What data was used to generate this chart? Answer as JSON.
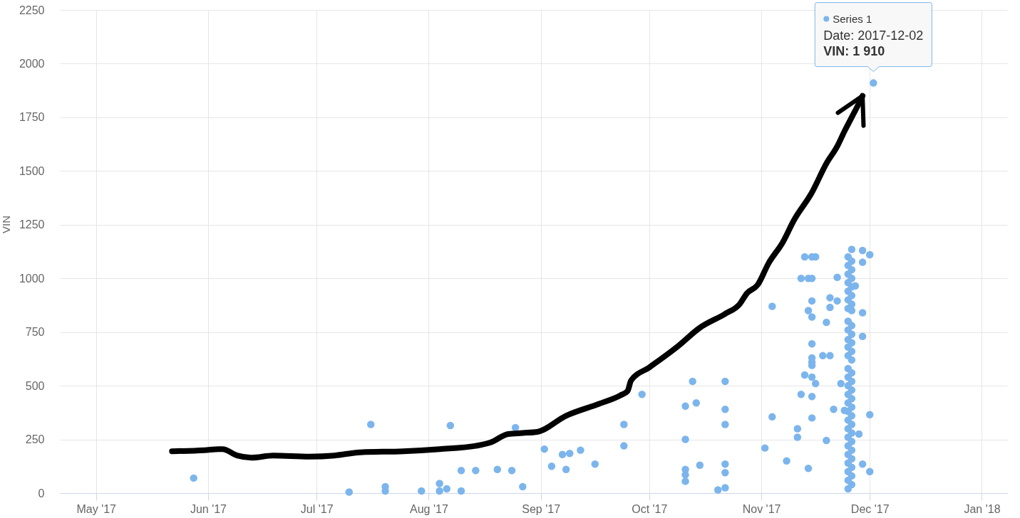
{
  "chart_data": {
    "type": "scatter",
    "ylabel": "VIN",
    "xlim": [
      "2017-04-21",
      "2018-01-08"
    ],
    "xticks": [
      {
        "value": "2017-05-01",
        "label": "May '17"
      },
      {
        "value": "2017-06-01",
        "label": "Jun '17"
      },
      {
        "value": "2017-07-01",
        "label": "Jul '17"
      },
      {
        "value": "2017-08-01",
        "label": "Aug '17"
      },
      {
        "value": "2017-09-01",
        "label": "Sep '17"
      },
      {
        "value": "2017-10-01",
        "label": "Oct '17"
      },
      {
        "value": "2017-11-01",
        "label": "Nov '17"
      },
      {
        "value": "2017-12-01",
        "label": "Dec '17"
      },
      {
        "value": "2018-01-01",
        "label": "Jan '18"
      }
    ],
    "ylim": [
      0,
      2250
    ],
    "yticks": [
      0,
      250,
      500,
      750,
      1000,
      1250,
      1500,
      1750,
      2000,
      2250
    ],
    "grid": true,
    "series": [
      {
        "name": "Series 1",
        "color": "#7cb5ec",
        "x": [
          "2017-05-28",
          "2017-07-10",
          "2017-07-16",
          "2017-07-20",
          "2017-07-20",
          "2017-07-30",
          "2017-08-04",
          "2017-08-04",
          "2017-08-06",
          "2017-08-07",
          "2017-08-10",
          "2017-08-10",
          "2017-08-14",
          "2017-08-20",
          "2017-08-24",
          "2017-08-25",
          "2017-08-27",
          "2017-09-02",
          "2017-09-04",
          "2017-09-07",
          "2017-09-08",
          "2017-09-09",
          "2017-09-12",
          "2017-09-16",
          "2017-09-24",
          "2017-09-24",
          "2017-09-29",
          "2017-10-11",
          "2017-10-11",
          "2017-10-11",
          "2017-10-11",
          "2017-10-11",
          "2017-10-13",
          "2017-10-14",
          "2017-10-15",
          "2017-10-20",
          "2017-10-22",
          "2017-10-22",
          "2017-10-22",
          "2017-10-22",
          "2017-10-22",
          "2017-10-22",
          "2017-11-02",
          "2017-11-04",
          "2017-11-04",
          "2017-11-08",
          "2017-11-11",
          "2017-11-11",
          "2017-11-12",
          "2017-11-12",
          "2017-11-13",
          "2017-11-13",
          "2017-11-14",
          "2017-11-14",
          "2017-11-14",
          "2017-11-15",
          "2017-11-15",
          "2017-11-15",
          "2017-11-15",
          "2017-11-15",
          "2017-11-15",
          "2017-11-15",
          "2017-11-15",
          "2017-11-15",
          "2017-11-15",
          "2017-11-15",
          "2017-11-16",
          "2017-11-16",
          "2017-11-18",
          "2017-11-19",
          "2017-11-19",
          "2017-11-20",
          "2017-11-20",
          "2017-11-20",
          "2017-11-21",
          "2017-11-22",
          "2017-11-22",
          "2017-11-23",
          "2017-11-24",
          "2017-11-25",
          "2017-11-25",
          "2017-11-25",
          "2017-11-25",
          "2017-11-25",
          "2017-11-25",
          "2017-11-25",
          "2017-11-25",
          "2017-11-25",
          "2017-11-25",
          "2017-11-25",
          "2017-11-25",
          "2017-11-25",
          "2017-11-25",
          "2017-11-25",
          "2017-11-25",
          "2017-11-25",
          "2017-11-25",
          "2017-11-25",
          "2017-11-25",
          "2017-11-25",
          "2017-11-25",
          "2017-11-25",
          "2017-11-25",
          "2017-11-25",
          "2017-11-25",
          "2017-11-25",
          "2017-11-26",
          "2017-11-26",
          "2017-11-26",
          "2017-11-26",
          "2017-11-26",
          "2017-11-26",
          "2017-11-26",
          "2017-11-26",
          "2017-11-26",
          "2017-11-26",
          "2017-11-26",
          "2017-11-26",
          "2017-11-26",
          "2017-11-26",
          "2017-11-26",
          "2017-11-26",
          "2017-11-26",
          "2017-11-26",
          "2017-11-26",
          "2017-11-26",
          "2017-11-26",
          "2017-11-26",
          "2017-11-26",
          "2017-11-26",
          "2017-11-26",
          "2017-11-26",
          "2017-11-26",
          "2017-11-27",
          "2017-11-28",
          "2017-11-29",
          "2017-11-29",
          "2017-11-29",
          "2017-11-29",
          "2017-11-29",
          "2017-12-01",
          "2017-12-01",
          "2017-12-01",
          "2017-12-02"
        ],
        "values": [
          70,
          5,
          320,
          30,
          10,
          10,
          45,
          10,
          20,
          315,
          105,
          10,
          105,
          110,
          105,
          305,
          30,
          205,
          125,
          180,
          110,
          185,
          200,
          135,
          320,
          220,
          460,
          405,
          250,
          110,
          85,
          55,
          520,
          420,
          130,
          15,
          520,
          390,
          320,
          135,
          95,
          25,
          210,
          870,
          355,
          150,
          300,
          260,
          460,
          1000,
          550,
          1100,
          115,
          1000,
          850,
          1100,
          1000,
          895,
          820,
          695,
          630,
          610,
          595,
          540,
          450,
          350,
          1100,
          510,
          640,
          245,
          795,
          910,
          865,
          640,
          390,
          1005,
          895,
          510,
          385,
          1100,
          1060,
          1020,
          980,
          940,
          900,
          860,
          800,
          760,
          715,
          680,
          640,
          580,
          540,
          500,
          460,
          420,
          380,
          340,
          300,
          260,
          220,
          180,
          140,
          100,
          60,
          20,
          1135,
          1080,
          1040,
          1000,
          960,
          920,
          880,
          850,
          780,
          740,
          700,
          660,
          620,
          560,
          520,
          480,
          440,
          400,
          360,
          320,
          280,
          240,
          200,
          160,
          120,
          80,
          40,
          965,
          275,
          1130,
          1075,
          840,
          730,
          135,
          1110,
          365,
          100,
          1910
        ]
      },
      {
        "type": "line",
        "color": "#000000",
        "x": [
          "2017-05-22",
          "2017-05-31",
          "2017-06-04",
          "2017-06-05",
          "2017-06-09",
          "2017-06-13",
          "2017-06-19",
          "2017-06-29",
          "2017-07-06",
          "2017-07-13",
          "2017-07-25",
          "2017-08-04",
          "2017-08-14",
          "2017-08-18",
          "2017-08-23",
          "2017-08-27",
          "2017-08-31",
          "2017-09-08",
          "2017-09-17",
          "2017-09-23",
          "2017-09-25",
          "2017-09-26",
          "2017-10-01",
          "2017-10-09",
          "2017-10-15",
          "2017-10-22",
          "2017-10-26",
          "2017-10-28",
          "2017-10-31",
          "2017-11-03",
          "2017-11-07",
          "2017-11-10",
          "2017-11-15",
          "2017-11-19",
          "2017-11-22",
          "2017-11-24",
          "2017-11-26",
          "2017-11-28",
          "2017-11-29"
        ],
        "values": [
          195,
          200,
          205,
          205,
          175,
          165,
          175,
          170,
          175,
          190,
          195,
          205,
          220,
          235,
          275,
          280,
          285,
          360,
          415,
          455,
          475,
          525,
          585,
          685,
          770,
          835,
          880,
          930,
          970,
          1070,
          1170,
          1270,
          1400,
          1535,
          1615,
          1685,
          1750,
          1815,
          1850
        ]
      }
    ],
    "annotations": [
      "Date: 2017-12-02",
      {
        "text": "VIN: 1 910",
        "x": "2017-12-02",
        "y": 1910
      }
    ]
  }
}
